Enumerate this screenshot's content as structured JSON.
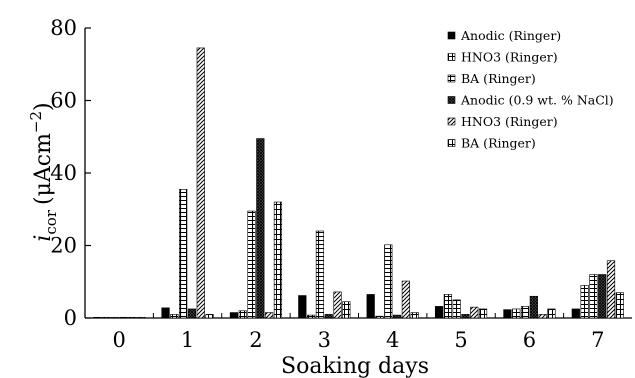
{
  "chart_data": {
    "type": "bar",
    "categories": [
      "0",
      "1",
      "2",
      "3",
      "4",
      "5",
      "6",
      "7"
    ],
    "series": [
      {
        "name": "Anodic (Ringer)",
        "pattern": "solid",
        "values": [
          0.2,
          2.8,
          1.5,
          6.2,
          6.5,
          3.2,
          2.3,
          2.5
        ]
      },
      {
        "name": "HNO3 (Ringer)",
        "pattern": "check",
        "values": [
          0.2,
          1.0,
          2.0,
          0.8,
          0.5,
          6.5,
          2.5,
          9.0
        ]
      },
      {
        "name": "BA (Ringer)",
        "pattern": "hbrick",
        "values": [
          0.2,
          35.5,
          29.5,
          24.0,
          20.2,
          5.0,
          3.2,
          12.0
        ]
      },
      {
        "name": "Anodic (0.9 wt. % NaCl)",
        "pattern": "crosshatch",
        "values": [
          0.2,
          2.5,
          49.5,
          1.0,
          0.8,
          1.0,
          6.0,
          12.0
        ]
      },
      {
        "name": "HNO3 (Ringer)",
        "pattern": "diag",
        "values": [
          0.2,
          74.5,
          1.5,
          7.2,
          10.2,
          3.0,
          1.0,
          15.8
        ]
      },
      {
        "name": "BA (Ringer)",
        "pattern": "vbrick",
        "values": [
          0.2,
          1.0,
          32.0,
          4.5,
          1.5,
          2.5,
          2.5,
          7.0
        ]
      }
    ],
    "xlabel": "Soaking days",
    "ylabel_main": "i",
    "ylabel_sub": "cor",
    "ylabel_unit_pre": "(μAcm",
    "ylabel_unit_sup": "−2",
    "ylabel_unit_post": ")",
    "ylim": [
      0,
      80
    ],
    "yticks": [
      "0",
      "20",
      "40",
      "60",
      "80"
    ],
    "grid": false,
    "legend_position": "top-right"
  }
}
